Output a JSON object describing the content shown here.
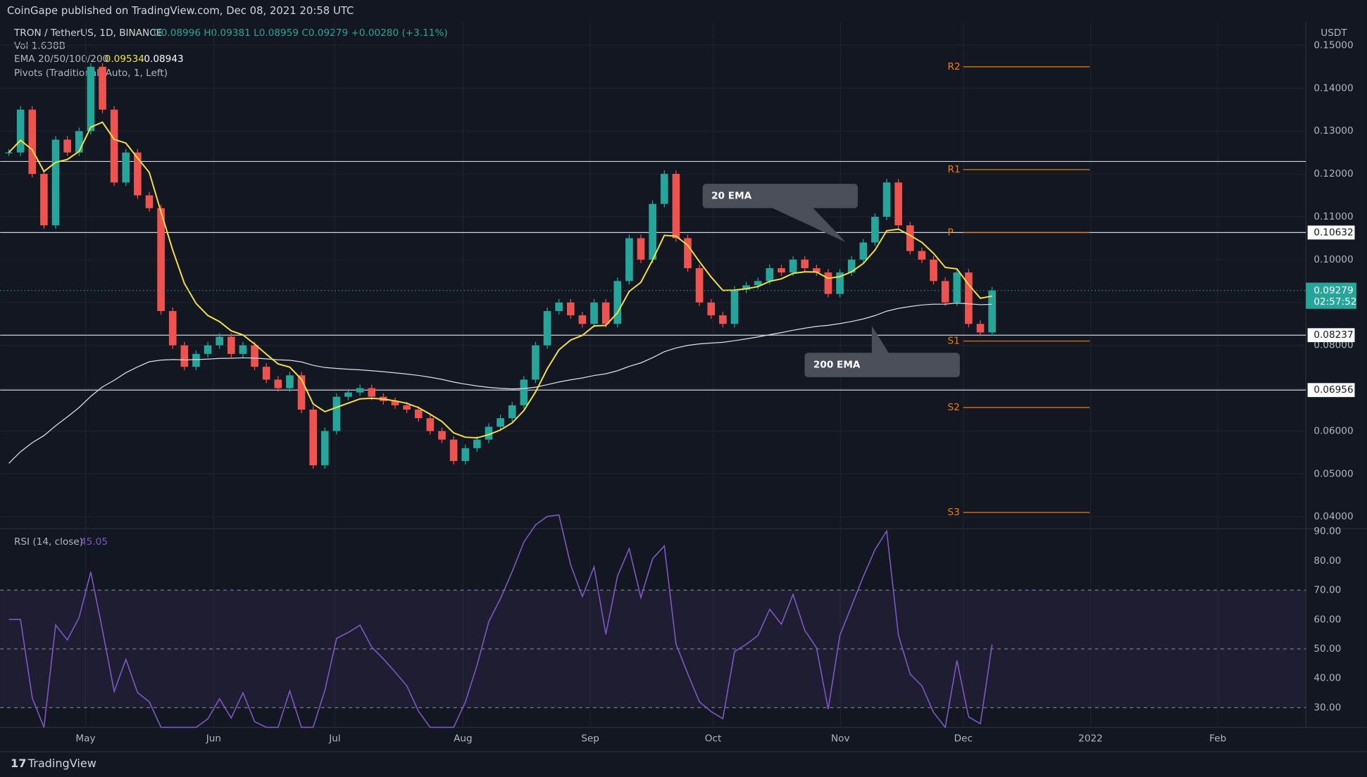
{
  "header": {
    "published": "CoinGape published on TradingView.com, Dec 08, 2021 20:58 UTC",
    "brand": "TradingView"
  },
  "chart_data": {
    "type": "candlestick",
    "title": "TRON / TetherUS, 1D, BINANCE",
    "ohlc_label": "O0.08996 H0.09381 L0.08959 C0.09279 +0.00280 (+3.11%)",
    "volume_label": "Vol 1.638B",
    "ema_label": "EMA 20/50/100/200",
    "ema_values": [
      0.09534,
      0.08943
    ],
    "pivots_label": "Pivots (Traditional, Auto, 1, Left)",
    "currency": "USDT",
    "close": [
      0.125,
      0.135,
      0.12,
      0.108,
      0.128,
      0.125,
      0.13,
      0.145,
      0.135,
      0.118,
      0.125,
      0.115,
      0.112,
      0.088,
      0.08,
      0.075,
      0.078,
      0.08,
      0.082,
      0.078,
      0.08,
      0.075,
      0.072,
      0.07,
      0.073,
      0.065,
      0.052,
      0.06,
      0.068,
      0.069,
      0.07,
      0.068,
      0.067,
      0.066,
      0.065,
      0.063,
      0.06,
      0.058,
      0.053,
      0.056,
      0.058,
      0.061,
      0.063,
      0.066,
      0.072,
      0.08,
      0.088,
      0.09,
      0.087,
      0.085,
      0.09,
      0.085,
      0.095,
      0.105,
      0.1,
      0.113,
      0.12,
      0.105,
      0.098,
      0.09,
      0.087,
      0.085,
      0.093,
      0.094,
      0.095,
      0.098,
      0.097,
      0.1,
      0.098,
      0.097,
      0.092,
      0.097,
      0.1,
      0.104,
      0.11,
      0.118,
      0.108,
      0.102,
      0.1,
      0.095,
      0.09,
      0.097,
      0.085,
      0.083,
      0.09279
    ],
    "x_labels": [
      "May",
      "Jun",
      "Jul",
      "Aug",
      "Sep",
      "Oct",
      "Nov",
      "Dec",
      "2022",
      "Feb"
    ],
    "ylim": [
      0.0372,
      0.1555
    ],
    "yticks": [
      {
        "value": 0.15,
        "label": "0.15000"
      },
      {
        "value": 0.14,
        "label": "0.14000"
      },
      {
        "value": 0.13,
        "label": "0.13000"
      },
      {
        "value": 0.12,
        "label": "0.12000"
      },
      {
        "value": 0.11,
        "label": "0.11000"
      },
      {
        "value": 0.1,
        "label": "0.10000"
      },
      {
        "value": 0.09,
        "label": "0.09000"
      },
      {
        "value": 0.08,
        "label": "0.08000"
      },
      {
        "value": 0.07,
        "label": "0.07000"
      },
      {
        "value": 0.06,
        "label": "0.06000"
      },
      {
        "value": 0.05,
        "label": "0.05000"
      },
      {
        "value": 0.04,
        "label": "0.04000"
      }
    ],
    "last_price": {
      "value": 0.09279,
      "label": "0.09279",
      "countdown": "02:57:52"
    },
    "levels": [
      {
        "value": 0.1229
      },
      {
        "value": 0.10632,
        "label": "0.10632"
      },
      {
        "value": 0.08237,
        "label": "0.08237"
      },
      {
        "value": 0.06956,
        "label": "0.06956"
      }
    ],
    "pivots": [
      {
        "name": "R2",
        "value": 0.145
      },
      {
        "name": "R1",
        "value": 0.121
      },
      {
        "name": "P",
        "value": 0.1063
      },
      {
        "name": "S1",
        "value": 0.081
      },
      {
        "name": "S2",
        "value": 0.0655
      },
      {
        "name": "S3",
        "value": 0.041
      }
    ],
    "annotations": [
      "20 EMA",
      "200 EMA"
    ],
    "up_color": "#26a69a",
    "down_color": "#ef5350",
    "rsi": {
      "label": "RSI (14, close)",
      "value": 45.05,
      "ylim": [
        23.3,
        90.9
      ],
      "yticks": [
        {
          "value": 90,
          "label": "90.00"
        },
        {
          "value": 80,
          "label": "80.00"
        },
        {
          "value": 70,
          "label": "70.00"
        },
        {
          "value": 60,
          "label": "60.00"
        },
        {
          "value": 50,
          "label": "50.00"
        },
        {
          "value": 40,
          "label": "40.00"
        },
        {
          "value": 30,
          "label": "30.00"
        }
      ],
      "bands": [
        70,
        50,
        30
      ],
      "color": "#7e57c2"
    }
  }
}
